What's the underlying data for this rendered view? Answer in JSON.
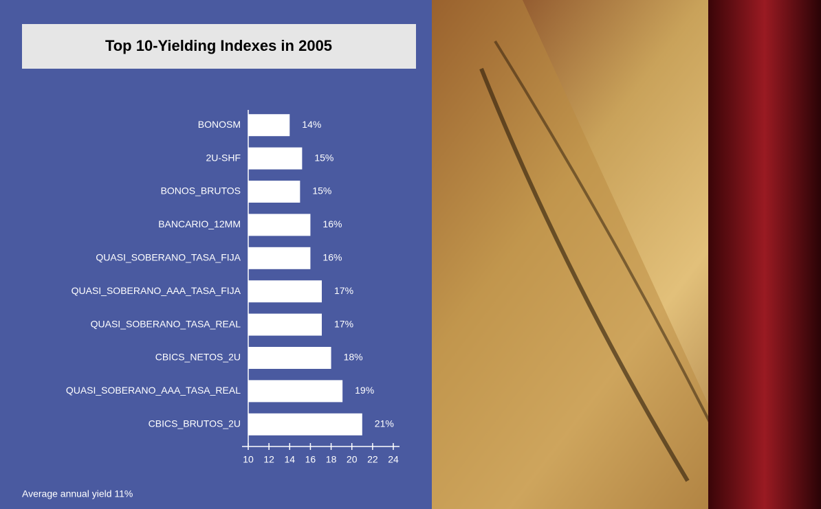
{
  "chart_data": {
    "type": "barh",
    "title": "Top 10-Yielding Indexes in 2005",
    "categories": [
      "BONOSM",
      "2U-SHF",
      "BONOS_BRUTOS",
      "BANCARIO_12MM",
      "QUASI_SOBERANO_TASA_FIJA",
      "QUASI_SOBERANO_AAA_TASA_FIJA",
      "QUASI_SOBERANO_TASA_REAL",
      "CBICS_NETOS_2U",
      "QUASI_SOBERANO_AAA_TASA_REAL",
      "CBICS_BRUTOS_2U"
    ],
    "values": [
      14.0,
      15.2,
      15.0,
      16.0,
      16.0,
      17.1,
      17.1,
      18.0,
      19.1,
      21.0
    ],
    "value_labels": [
      "14%",
      "15%",
      "15%",
      "16%",
      "16%",
      "17%",
      "17%",
      "18%",
      "19%",
      "21%"
    ],
    "color": "#ffffff",
    "xlim": [
      10,
      24
    ],
    "xticks": [
      10,
      12,
      14,
      16,
      18,
      20,
      22,
      24
    ],
    "footnote": "Average annual yield 11%"
  }
}
